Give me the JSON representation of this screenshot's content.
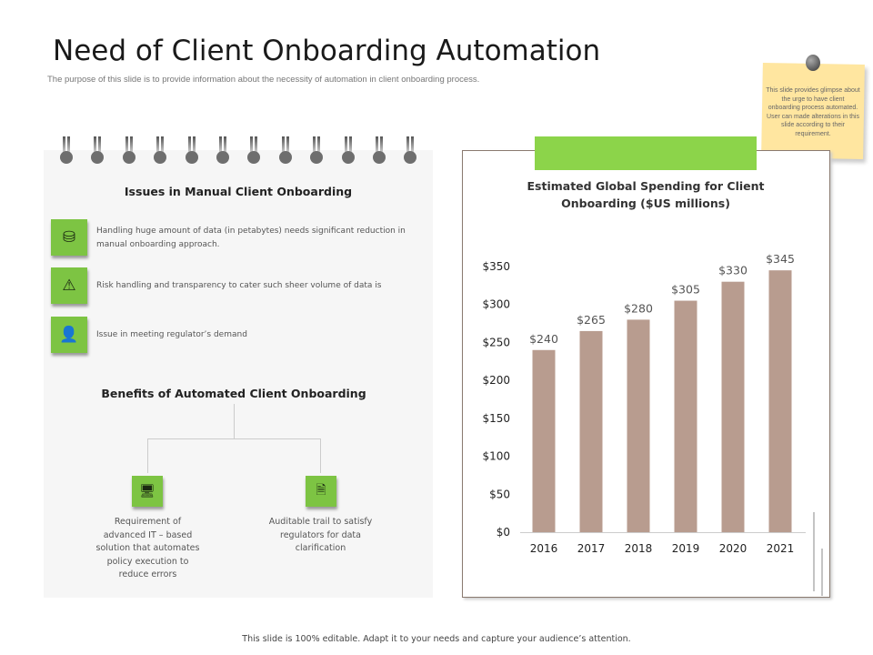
{
  "title": "Need of Client Onboarding Automation",
  "subtitle": "The purpose of this slide is to provide information about the necessity of automation in client onboarding process.",
  "note": "This slide provides glimpse about the urge to have client onboarding process automated. User can made alterations in this slide according to their requirement.",
  "issues": {
    "heading": "Issues in Manual Client Onboarding",
    "items": [
      {
        "icon": "database-hands-icon",
        "text": "Handling huge amount of data (in petabytes) needs significant reduction in manual onboarding approach."
      },
      {
        "icon": "warning-icon",
        "text": "Risk handling and transparency to cater such sheer volume of data is"
      },
      {
        "icon": "regulator-user-icon",
        "text": "Issue in meeting regulator’s demand"
      }
    ]
  },
  "benefits": {
    "heading": "Benefits of Automated Client Onboarding",
    "items": [
      {
        "icon": "computer-settings-icon",
        "text": "Requirement of advanced IT – based solution that automates policy execution to reduce errors"
      },
      {
        "icon": "document-audit-icon",
        "text": "Auditable trail to satisfy regulators for data clarification"
      }
    ]
  },
  "footer": "This slide is 100% editable. Adapt it to your needs and capture your audience’s attention.",
  "colors": {
    "accent": "#7dc443",
    "bar": "#b89c8f"
  },
  "chart_data": {
    "type": "bar",
    "title": "Estimated Global Spending for Client Onboarding ($US millions)",
    "categories": [
      "2016",
      "2017",
      "2018",
      "2019",
      "2020",
      "2021"
    ],
    "values": [
      240,
      265,
      280,
      305,
      330,
      345
    ],
    "data_labels": [
      "$240",
      "$265",
      "$280",
      "$305",
      "$330",
      "$345"
    ],
    "y_ticks": [
      "$0",
      "$50",
      "$100",
      "$150",
      "$200",
      "$250",
      "$300",
      "$350"
    ],
    "ylim": [
      0,
      350
    ],
    "grid": false,
    "xlabel": "",
    "ylabel": ""
  }
}
